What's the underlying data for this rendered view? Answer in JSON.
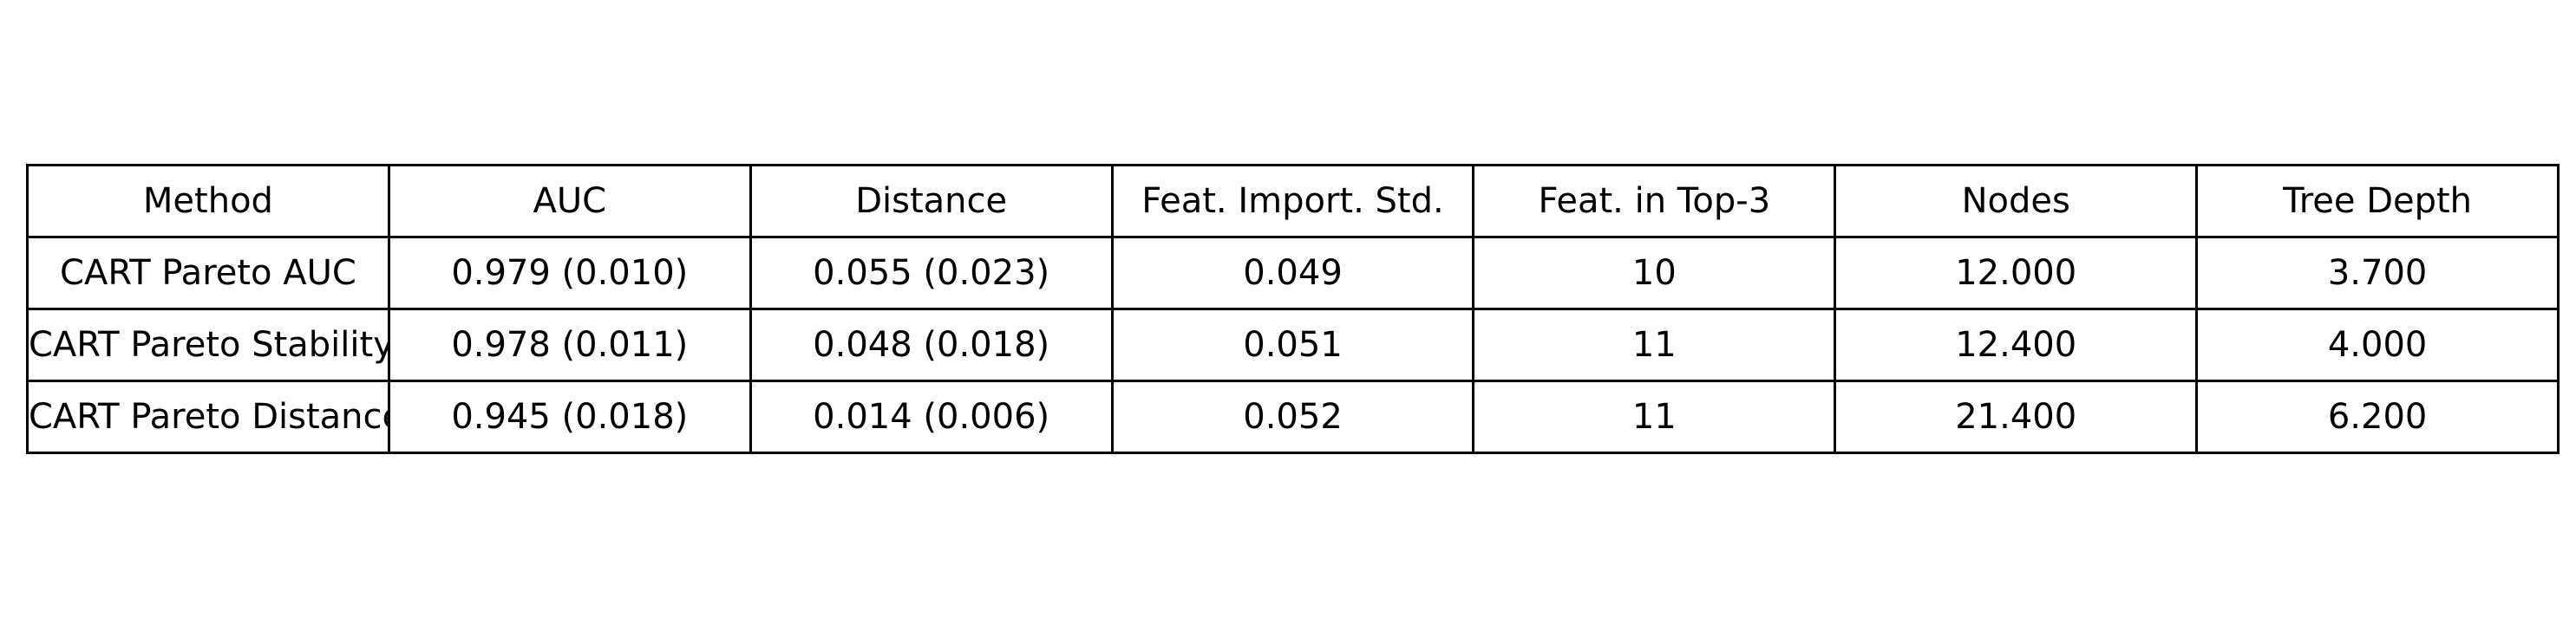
{
  "chart_data": {
    "type": "table",
    "columns": [
      "Method",
      "AUC",
      "Distance",
      "Feat. Import. Std.",
      "Feat. in Top-3",
      "Nodes",
      "Tree Depth"
    ],
    "rows": [
      [
        "CART Pareto AUC",
        "0.979 (0.010)",
        "0.055 (0.023)",
        "0.049",
        "10",
        "12.000",
        "3.700"
      ],
      [
        "CART Pareto Stability",
        "0.978 (0.011)",
        "0.048 (0.018)",
        "0.051",
        "11",
        "12.400",
        "4.000"
      ],
      [
        "CART Pareto Distance",
        "0.945 (0.018)",
        "0.014 (0.006)",
        "0.052",
        "11",
        "21.400",
        "6.200"
      ]
    ]
  }
}
